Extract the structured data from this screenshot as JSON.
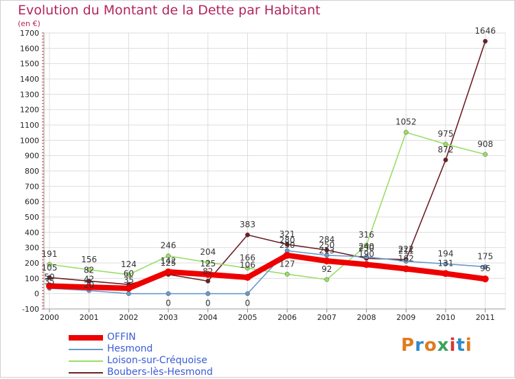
{
  "header": {
    "title": "Evolution du Montant de la Dette par Habitant",
    "subtitle": "(en €)"
  },
  "logo": {
    "text": "Proxiti",
    "colors": [
      "#e07b1c",
      "#2e8bc9",
      "#e07b1c",
      "#3aa35c",
      "#d33",
      "#2e8bc9",
      "#e07b1c"
    ]
  },
  "chart_data": {
    "type": "line",
    "x": [
      "2000",
      "2001",
      "2002",
      "2003",
      "2004",
      "2005",
      "2006",
      "2007",
      "2008",
      "2009",
      "2010",
      "2011"
    ],
    "ylim": [
      -100,
      1700
    ],
    "yticks": [
      -100,
      0,
      100,
      200,
      300,
      400,
      500,
      600,
      700,
      800,
      900,
      1000,
      1100,
      1200,
      1300,
      1400,
      1500,
      1600,
      1700
    ],
    "grid": true,
    "legend_position": "bottom-left",
    "series": [
      {
        "name": "OFFIN",
        "color": "#ee0000",
        "values": [
          50,
          42,
          35,
          142,
          125,
          106,
          250,
          213,
          190,
          162,
          131,
          96
        ]
      },
      {
        "name": "Hesmond",
        "color": "#6699cc",
        "values": [
          35,
          20,
          0,
          0,
          0,
          0,
          280,
          250,
          240,
          211,
          194,
          175
        ]
      },
      {
        "name": "Loison-sur-Créquoise",
        "color": "#99dd66",
        "values": [
          191,
          156,
          124,
          246,
          204,
          166,
          127,
          92,
          316,
          1052,
          975,
          908
        ]
      },
      {
        "name": "Boubers-lès-Hesmond",
        "color": "#6b1f24",
        "values": [
          105,
          82,
          60,
          125,
          82,
          383,
          321,
          284,
          230,
          222,
          872,
          1646
        ]
      }
    ],
    "data_labels": [
      {
        "x": "2000",
        "text": "191",
        "dy": -11
      },
      {
        "x": "2000",
        "text": "105",
        "dy": -10
      },
      {
        "x": "2000",
        "text": "50",
        "dy": -9
      },
      {
        "x": "2000",
        "text": "35",
        "dy": -6
      },
      {
        "x": "2001",
        "text": "156",
        "dy": -11
      },
      {
        "x": "2001",
        "text": "82",
        "dy": -12
      },
      {
        "x": "2001",
        "text": "42",
        "dy": -8
      },
      {
        "x": "2001",
        "text": "20",
        "dy": -4
      },
      {
        "x": "2002",
        "text": "124",
        "dy": -11
      },
      {
        "x": "2002",
        "text": "60",
        "dy": -12
      },
      {
        "x": "2002",
        "text": "35",
        "dy": -8
      },
      {
        "x": "2003",
        "text": "246",
        "dy": -11
      },
      {
        "x": "2003",
        "text": "142",
        "dy": -12
      },
      {
        "x": "2003",
        "text": "125",
        "dy": -13
      },
      {
        "x": "2003",
        "text": "0",
        "dy": 18
      },
      {
        "x": "2004",
        "text": "204",
        "dy": -11
      },
      {
        "x": "2004",
        "text": "125",
        "dy": -12
      },
      {
        "x": "2004",
        "text": "82",
        "dy": -10
      },
      {
        "x": "2004",
        "text": "0",
        "dy": 18
      },
      {
        "x": "2005",
        "text": "383",
        "dy": -11
      },
      {
        "x": "2005",
        "text": "166",
        "dy": -11
      },
      {
        "x": "2005",
        "text": "106",
        "dy": -14
      },
      {
        "x": "2005",
        "text": "0",
        "dy": 18
      },
      {
        "x": "2006",
        "text": "321",
        "dy": -11
      },
      {
        "x": "2006",
        "text": "280",
        "dy": -11
      },
      {
        "x": "2006",
        "text": "250",
        "dy": -11
      },
      {
        "x": "2006",
        "text": "127",
        "dy": -11
      },
      {
        "x": "2007",
        "text": "284",
        "dy": -11
      },
      {
        "x": "2007",
        "text": "250",
        "dy": -11
      },
      {
        "x": "2007",
        "text": "213",
        "dy": -11
      },
      {
        "x": "2007",
        "text": "92",
        "dy": -11
      },
      {
        "x": "2008",
        "text": "316",
        "dy": -11
      },
      {
        "x": "2008",
        "text": "240",
        "dy": -11
      },
      {
        "x": "2008",
        "text": "230",
        "dy": -11
      },
      {
        "x": "2008",
        "text": "190",
        "dy": -11
      },
      {
        "x": "2009",
        "text": "1052",
        "dy": -11
      },
      {
        "x": "2009",
        "text": "222",
        "dy": -11
      },
      {
        "x": "2009",
        "text": "211",
        "dy": -11
      },
      {
        "x": "2009",
        "text": "162",
        "dy": -11
      },
      {
        "x": "2010",
        "text": "975",
        "dy": -11
      },
      {
        "x": "2010",
        "text": "872",
        "dy": -11
      },
      {
        "x": "2010",
        "text": "194",
        "dy": -11
      },
      {
        "x": "2010",
        "text": "131",
        "dy": -11
      },
      {
        "x": "2011",
        "text": "1646",
        "dy": -11
      },
      {
        "x": "2011",
        "text": "908",
        "dy": -11
      },
      {
        "x": "2011",
        "text": "175",
        "dy": -11
      },
      {
        "x": "2011",
        "text": "96",
        "dy": -11
      }
    ]
  }
}
